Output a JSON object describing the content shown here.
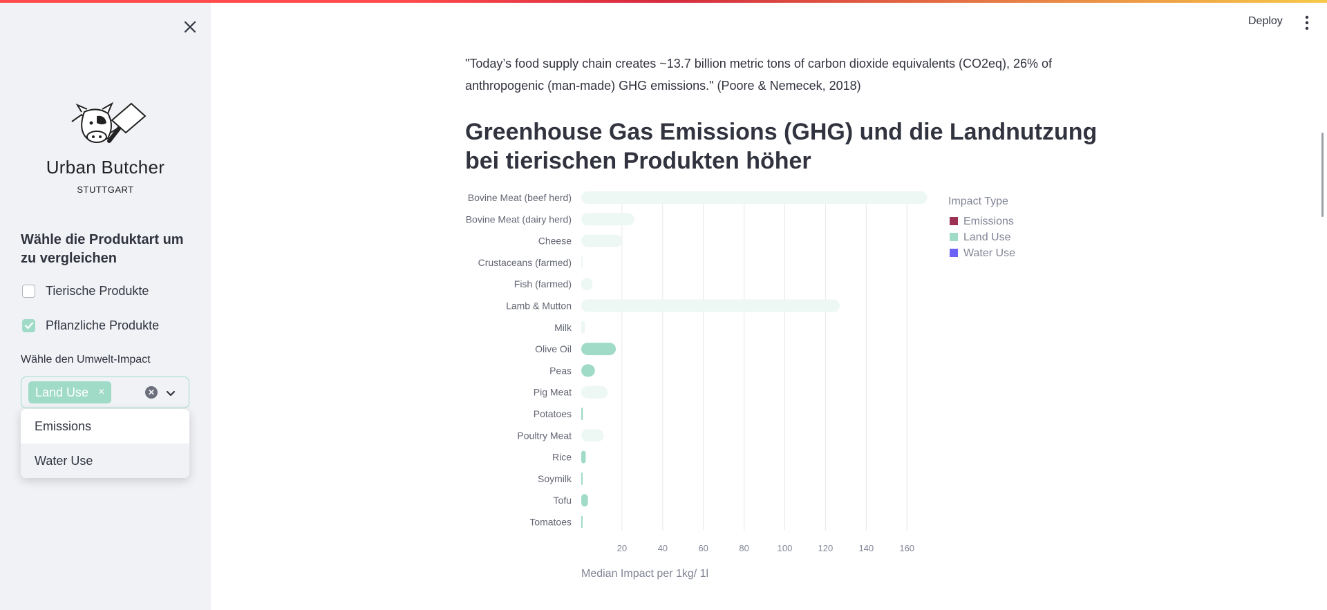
{
  "sidebar": {
    "brand_name": "Urban Butcher",
    "brand_city": "STUTTGART",
    "section_title": "Wähle die Produktart um zu vergleichen",
    "checkboxes": [
      {
        "label": "Tierische Produkte",
        "checked": false
      },
      {
        "label": "Pflanzliche Produkte",
        "checked": true
      }
    ],
    "impact_label": "Wähle den Umwelt-Impact",
    "selected_tags": [
      "Land Use"
    ],
    "dropdown_options": [
      "Emissions",
      "Water Use"
    ],
    "accent_color": "#a0dbc7"
  },
  "header": {
    "deploy_label": "Deploy"
  },
  "main": {
    "quote": "\"Today’s food supply chain creates ~13.7 billion metric tons of carbon dioxide equivalents (CO2eq), 26% of anthropogenic (man-made) GHG emissions.\" (Poore & Nemecek, 2018)",
    "heading": "Greenhouse Gas Emissions (GHG) und die Landnutzung bei tierischen Produkten höher"
  },
  "chart_data": {
    "type": "bar",
    "orientation": "horizontal",
    "categories": [
      "Bovine Meat (beef herd)",
      "Bovine Meat (dairy herd)",
      "Cheese",
      "Crustaceans (farmed)",
      "Fish (farmed)",
      "Lamb & Mutton",
      "Milk",
      "Olive Oil",
      "Peas",
      "Pig Meat",
      "Potatoes",
      "Poultry Meat",
      "Rice",
      "Soymilk",
      "Tofu",
      "Tomatoes"
    ],
    "series": [
      {
        "name": "Land Use",
        "values": [
          170,
          26,
          20,
          0.5,
          5.5,
          127,
          1.8,
          17,
          6.7,
          13,
          0.8,
          11,
          2.2,
          0.7,
          3.3,
          0.2
        ],
        "highlighted": [
          false,
          false,
          false,
          false,
          false,
          false,
          false,
          true,
          true,
          false,
          true,
          false,
          true,
          true,
          true,
          true
        ]
      }
    ],
    "xlabel": "Median Impact per 1kg/ 1l",
    "xlim": [
      0,
      175
    ],
    "xticks": [
      20,
      40,
      60,
      80,
      100,
      120,
      140,
      160
    ],
    "grid": true,
    "legend": {
      "title": "Impact Type",
      "placement": "top-right",
      "entries": [
        {
          "label": "Emissions",
          "color": "#9b3253"
        },
        {
          "label": "Land Use",
          "color": "#a0dbc7"
        },
        {
          "label": "Water Use",
          "color": "#6b63f5"
        }
      ]
    },
    "faded_color": "#edf7f3",
    "highlight_color": "#a0dbc7"
  }
}
